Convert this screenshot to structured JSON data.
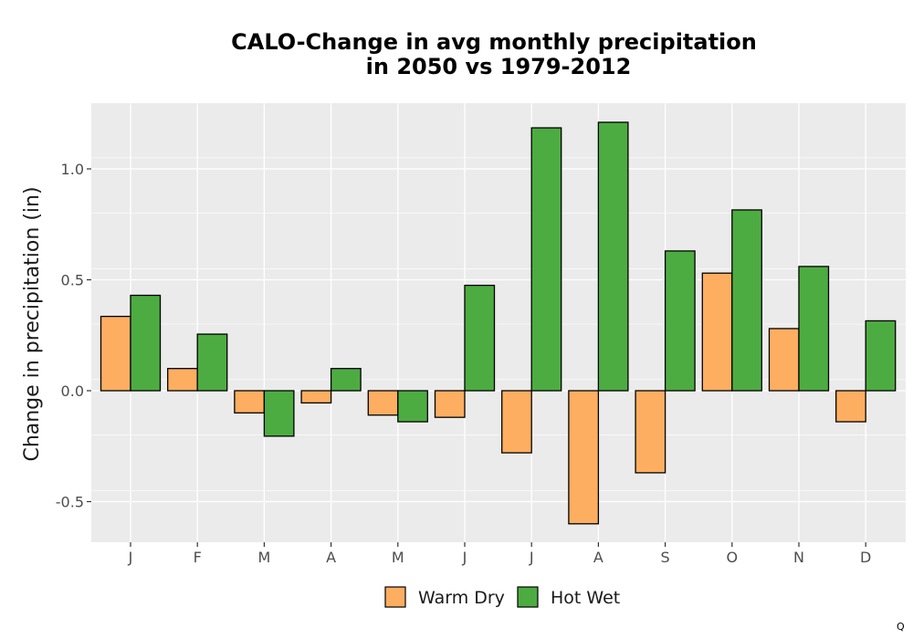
{
  "chart_data": {
    "type": "bar",
    "title_lines": [
      "CALO-Change in avg monthly precipitation",
      "in 2050 vs 1979-2012"
    ],
    "xlabel": "",
    "ylabel": "Change in precipitation (in)",
    "categories": [
      "J",
      "F",
      "M",
      "A",
      "M",
      "J",
      "J",
      "A",
      "S",
      "O",
      "N",
      "D"
    ],
    "series": [
      {
        "name": "Warm Dry",
        "color": "#fdae61",
        "values": [
          0.335,
          0.1,
          -0.1,
          -0.055,
          -0.11,
          -0.12,
          -0.28,
          -0.6,
          -0.37,
          0.53,
          0.28,
          -0.14
        ]
      },
      {
        "name": "Hot Wet",
        "color": "#4dac41",
        "values": [
          0.43,
          0.255,
          -0.205,
          0.1,
          -0.14,
          0.475,
          1.185,
          1.21,
          0.63,
          0.815,
          0.56,
          0.315
        ]
      }
    ],
    "ylim": [
      -0.7,
      1.3
    ],
    "yticks": [
      -0.5,
      0.0,
      0.5,
      1.0
    ],
    "ytick_labels": [
      "-0.5",
      "0.0",
      "0.5",
      "1.0"
    ],
    "grid": true,
    "legend_position": "bottom",
    "panel_background": "#ebebeb",
    "corner_mark": "Q"
  }
}
